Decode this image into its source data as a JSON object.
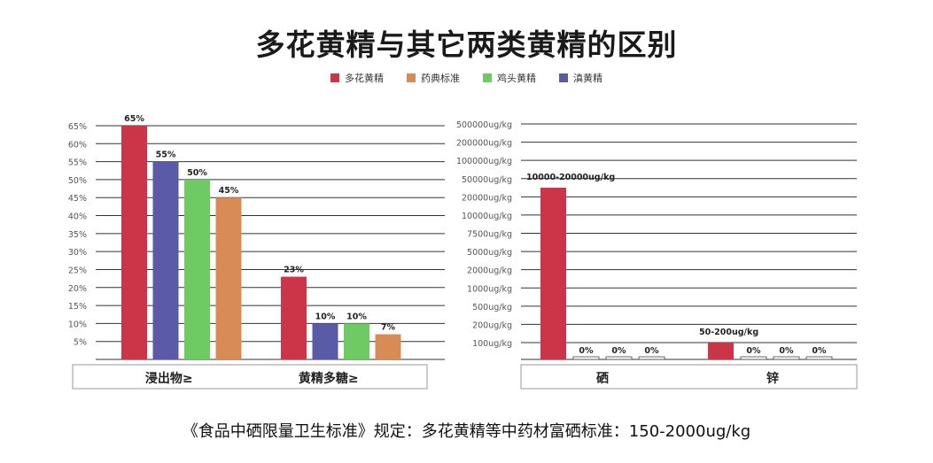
{
  "title": "多花黄精与其它两类黄精的区别",
  "legend": [
    {
      "label": "多花黄精",
      "color": "#cc3547"
    },
    {
      "label": "药典标准",
      "color": "#d98b55"
    },
    {
      "label": "鸡头黄精",
      "color": "#6ecb63"
    },
    {
      "label": "滇黄精",
      "color": "#5a5aa7"
    }
  ],
  "footer": "《食品中硒限量卫生标准》规定：多花黄精等中药材富硒标准：150-2000ug/kg",
  "chart_data": [
    {
      "type": "bar",
      "categories": [
        "浸出物≥",
        "黄精多糖≥"
      ],
      "y_ticks": [
        "5%",
        "10%",
        "15%",
        "20%",
        "25%",
        "30%",
        "35%",
        "40%",
        "45%",
        "50%",
        "55%",
        "60%",
        "65%"
      ],
      "ylim": [
        0,
        65
      ],
      "series": [
        {
          "name": "多花黄精",
          "color": "#cc3547",
          "values": [
            65,
            23
          ],
          "labels": [
            "65%",
            "23%"
          ]
        },
        {
          "name": "滇黄精",
          "color": "#5a5aa7",
          "values": [
            55,
            10
          ],
          "labels": [
            "55%",
            "10%"
          ]
        },
        {
          "name": "鸡头黄精",
          "color": "#6ecb63",
          "values": [
            50,
            10
          ],
          "labels": [
            "50%",
            "10%"
          ]
        },
        {
          "name": "药典标准",
          "color": "#d98b55",
          "values": [
            45,
            7
          ],
          "labels": [
            "45%",
            "7%"
          ]
        }
      ]
    },
    {
      "type": "bar",
      "categories": [
        "硒",
        "锌"
      ],
      "y_ticks": [
        "100ug/kg",
        "200ug/kg",
        "500ug/kg",
        "1000ug/kg",
        "2000ug/kg",
        "5000ug/kg",
        "7500ug/kg",
        "10000ug/kg",
        "20000ug/kg",
        "50000ug/kg",
        "100000ug/kg",
        "200000ug/kg",
        "500000ug/kg"
      ],
      "y_scale": "ordinal",
      "series": [
        {
          "name": "多花黄精",
          "color": "#cc3547",
          "tick_level": [
            9.5,
            1.0
          ],
          "labels": [
            "10000-20000ug/kg",
            "50-200ug/kg"
          ]
        },
        {
          "name": "滇黄精",
          "color": "#ffffff",
          "tick_level": [
            0,
            0
          ],
          "labels": [
            "0%",
            "0%"
          ]
        },
        {
          "name": "鸡头黄精",
          "color": "#ffffff",
          "tick_level": [
            0,
            0
          ],
          "labels": [
            "0%",
            "0%"
          ]
        },
        {
          "name": "药典标准",
          "color": "#ffffff",
          "tick_level": [
            0,
            0
          ],
          "labels": [
            "0%",
            "0%"
          ]
        }
      ]
    }
  ]
}
